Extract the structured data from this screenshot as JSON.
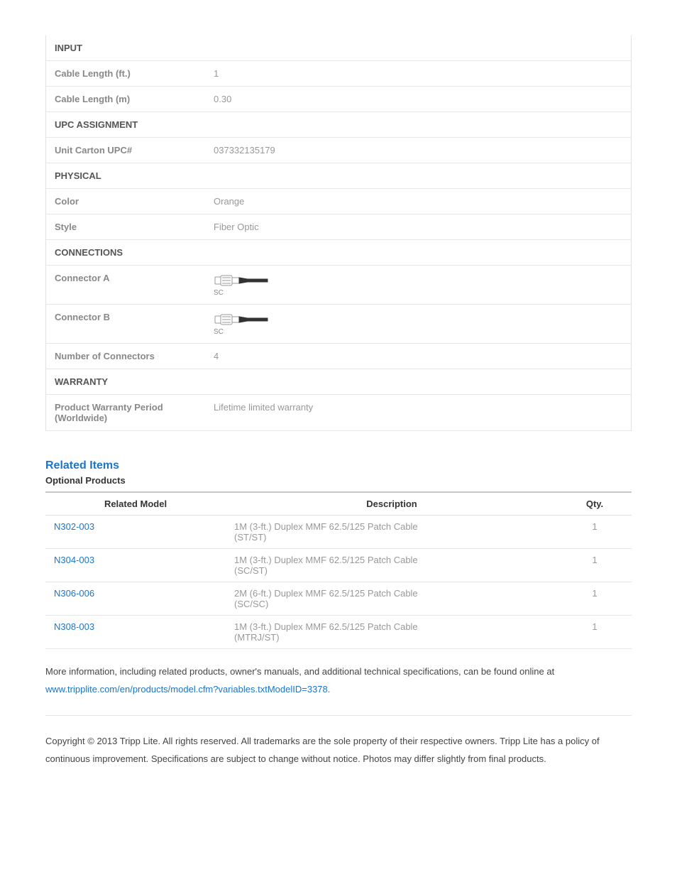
{
  "specs": {
    "sections": [
      {
        "title": "INPUT",
        "rows": [
          {
            "label": "Cable Length (ft.)",
            "value": "1"
          },
          {
            "label": "Cable Length (m)",
            "value": "0.30"
          }
        ]
      },
      {
        "title": "UPC ASSIGNMENT",
        "rows": [
          {
            "label": "Unit Carton UPC#",
            "value": "037332135179"
          }
        ]
      },
      {
        "title": "PHYSICAL",
        "rows": [
          {
            "label": "Color",
            "value": "Orange"
          },
          {
            "label": "Style",
            "value": "Fiber Optic"
          }
        ]
      },
      {
        "title": "CONNECTIONS",
        "rows": [
          {
            "label": "Connector A",
            "value_type": "connector",
            "connector_label": "SC"
          },
          {
            "label": "Connector B",
            "value_type": "connector",
            "connector_label": "SC"
          },
          {
            "label": "Number of Connectors",
            "value": "4"
          }
        ]
      },
      {
        "title": "WARRANTY",
        "rows": [
          {
            "label": "Product Warranty Period (Worldwide)",
            "value": "Lifetime limited warranty"
          }
        ]
      }
    ]
  },
  "related": {
    "heading": "Related Items",
    "subheading": "Optional Products",
    "columns": [
      "Related Model",
      "Description",
      "Qty."
    ],
    "rows": [
      {
        "model": "N302-003",
        "desc_line1": "1M (3-ft.) Duplex MMF 62.5/125 Patch Cable",
        "desc_line2": "(ST/ST)",
        "qty": "1"
      },
      {
        "model": "N304-003",
        "desc_line1": "1M (3-ft.) Duplex MMF 62.5/125 Patch Cable",
        "desc_line2": "(SC/ST)",
        "qty": "1"
      },
      {
        "model": "N306-006",
        "desc_line1": "2M (6-ft.) Duplex MMF 62.5/125 Patch Cable",
        "desc_line2": "(SC/SC)",
        "qty": "1"
      },
      {
        "model": "N308-003",
        "desc_line1": "1M (3-ft.) Duplex MMF 62.5/125 Patch Cable",
        "desc_line2": "(MTRJ/ST)",
        "qty": "1"
      }
    ]
  },
  "footnote": {
    "text": "More information, including related products, owner's manuals, and additional technical specifications, can be found online at ",
    "link_text": "www.tripplite.com/en/products/model.cfm?variables.txtModelID=3378."
  },
  "copyright": "Copyright © 2013 Tripp Lite. All rights reserved. All trademarks are the sole property of their respective owners. Tripp Lite has a policy of continuous improvement. Specifications are subject to change without notice. Photos may differ slightly from final products."
}
